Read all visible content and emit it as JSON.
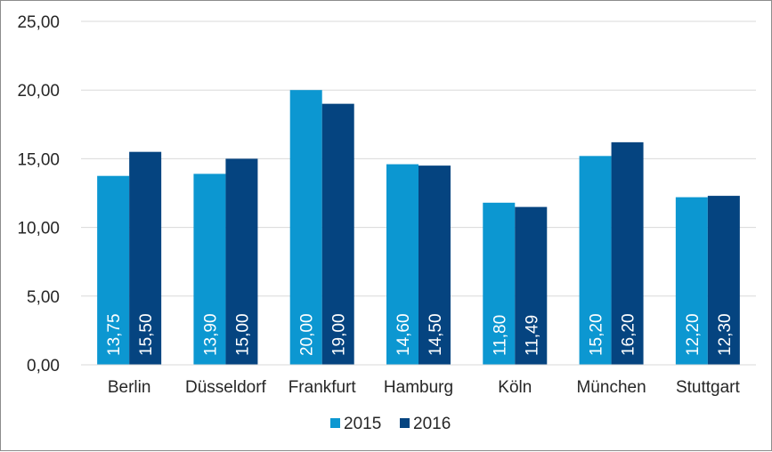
{
  "chart_data": {
    "type": "bar",
    "categories": [
      "Berlin",
      "Düsseldorf",
      "Frankfurt",
      "Hamburg",
      "Köln",
      "München",
      "Stuttgart"
    ],
    "series": [
      {
        "name": "2015",
        "values": [
          13.75,
          13.9,
          20.0,
          14.6,
          11.8,
          15.2,
          12.2
        ],
        "labels": [
          "13,75",
          "13,90",
          "20,00",
          "14,60",
          "11,80",
          "15,20",
          "12,20"
        ],
        "color": "#0c97d1"
      },
      {
        "name": "2016",
        "values": [
          15.5,
          15.0,
          19.0,
          14.5,
          11.49,
          16.2,
          12.3
        ],
        "labels": [
          "15,50",
          "15,00",
          "19,00",
          "14,50",
          "11,49",
          "16,20",
          "12,30"
        ],
        "color": "#054480"
      }
    ],
    "ylim": [
      0,
      25
    ],
    "yticks": [
      0,
      5,
      10,
      15,
      20,
      25
    ],
    "ytick_labels": [
      "0,00",
      "5,00",
      "10,00",
      "15,00",
      "20,00",
      "25,00"
    ],
    "grid": true,
    "legend_position": "bottom",
    "title": "",
    "xlabel": "",
    "ylabel": ""
  }
}
